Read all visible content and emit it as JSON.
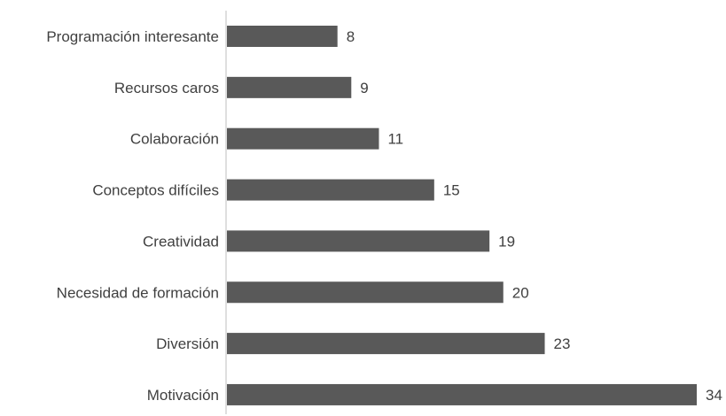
{
  "chart_data": {
    "type": "bar",
    "orientation": "horizontal",
    "categories": [
      "Programación interesante",
      "Recursos caros",
      "Colaboración",
      "Conceptos difíciles",
      "Creatividad",
      "Necesidad de formación",
      "Diversión",
      "Motivación"
    ],
    "values": [
      8,
      9,
      11,
      15,
      19,
      20,
      23,
      34
    ],
    "title": "",
    "xlabel": "",
    "ylabel": "",
    "xlim": [
      0,
      34
    ],
    "grid": false,
    "legend": "none",
    "bar_color": "#595959"
  }
}
